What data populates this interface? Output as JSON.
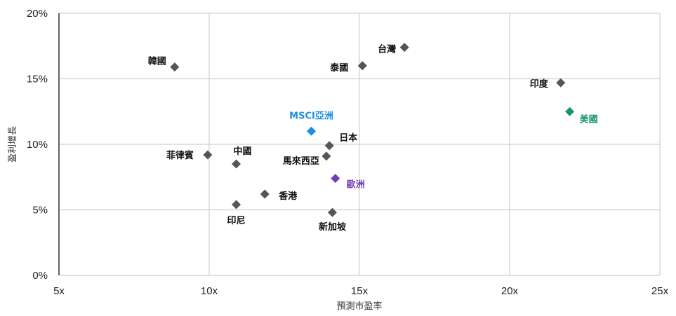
{
  "chart_data": {
    "type": "scatter",
    "xlabel": "預測市盈率",
    "ylabel": "盈利增長",
    "xlim": [
      5,
      25
    ],
    "ylim": [
      0,
      20
    ],
    "x_ticks": [
      "5x",
      "10x",
      "15x",
      "20x",
      "25x"
    ],
    "y_ticks": [
      "0%",
      "5%",
      "10%",
      "15%",
      "20%"
    ],
    "grid": true,
    "points": [
      {
        "label": "韓國",
        "x": 8.85,
        "y": 15.9,
        "color": "#555555"
      },
      {
        "label": "台灣",
        "x": 16.5,
        "y": 17.4,
        "color": "#555555"
      },
      {
        "label": "泰國",
        "x": 15.1,
        "y": 16.0,
        "color": "#555555"
      },
      {
        "label": "印度",
        "x": 21.7,
        "y": 14.7,
        "color": "#555555"
      },
      {
        "label": "美國",
        "x": 22.0,
        "y": 12.5,
        "color": "#17966b"
      },
      {
        "label": "MSCI亞洲",
        "x": 13.4,
        "y": 11.0,
        "color": "#1a8fe3"
      },
      {
        "label": "日本",
        "x": 14.0,
        "y": 9.9,
        "color": "#555555"
      },
      {
        "label": "馬來西亞",
        "x": 13.9,
        "y": 9.1,
        "color": "#555555"
      },
      {
        "label": "菲律賓",
        "x": 9.95,
        "y": 9.2,
        "color": "#555555"
      },
      {
        "label": "中國",
        "x": 10.9,
        "y": 8.5,
        "color": "#555555"
      },
      {
        "label": "歐洲",
        "x": 14.2,
        "y": 7.4,
        "color": "#6f3fb5"
      },
      {
        "label": "香港",
        "x": 11.85,
        "y": 6.2,
        "color": "#555555"
      },
      {
        "label": "印尼",
        "x": 10.9,
        "y": 5.4,
        "color": "#555555"
      },
      {
        "label": "新加坡",
        "x": 14.1,
        "y": 4.8,
        "color": "#555555"
      }
    ]
  }
}
